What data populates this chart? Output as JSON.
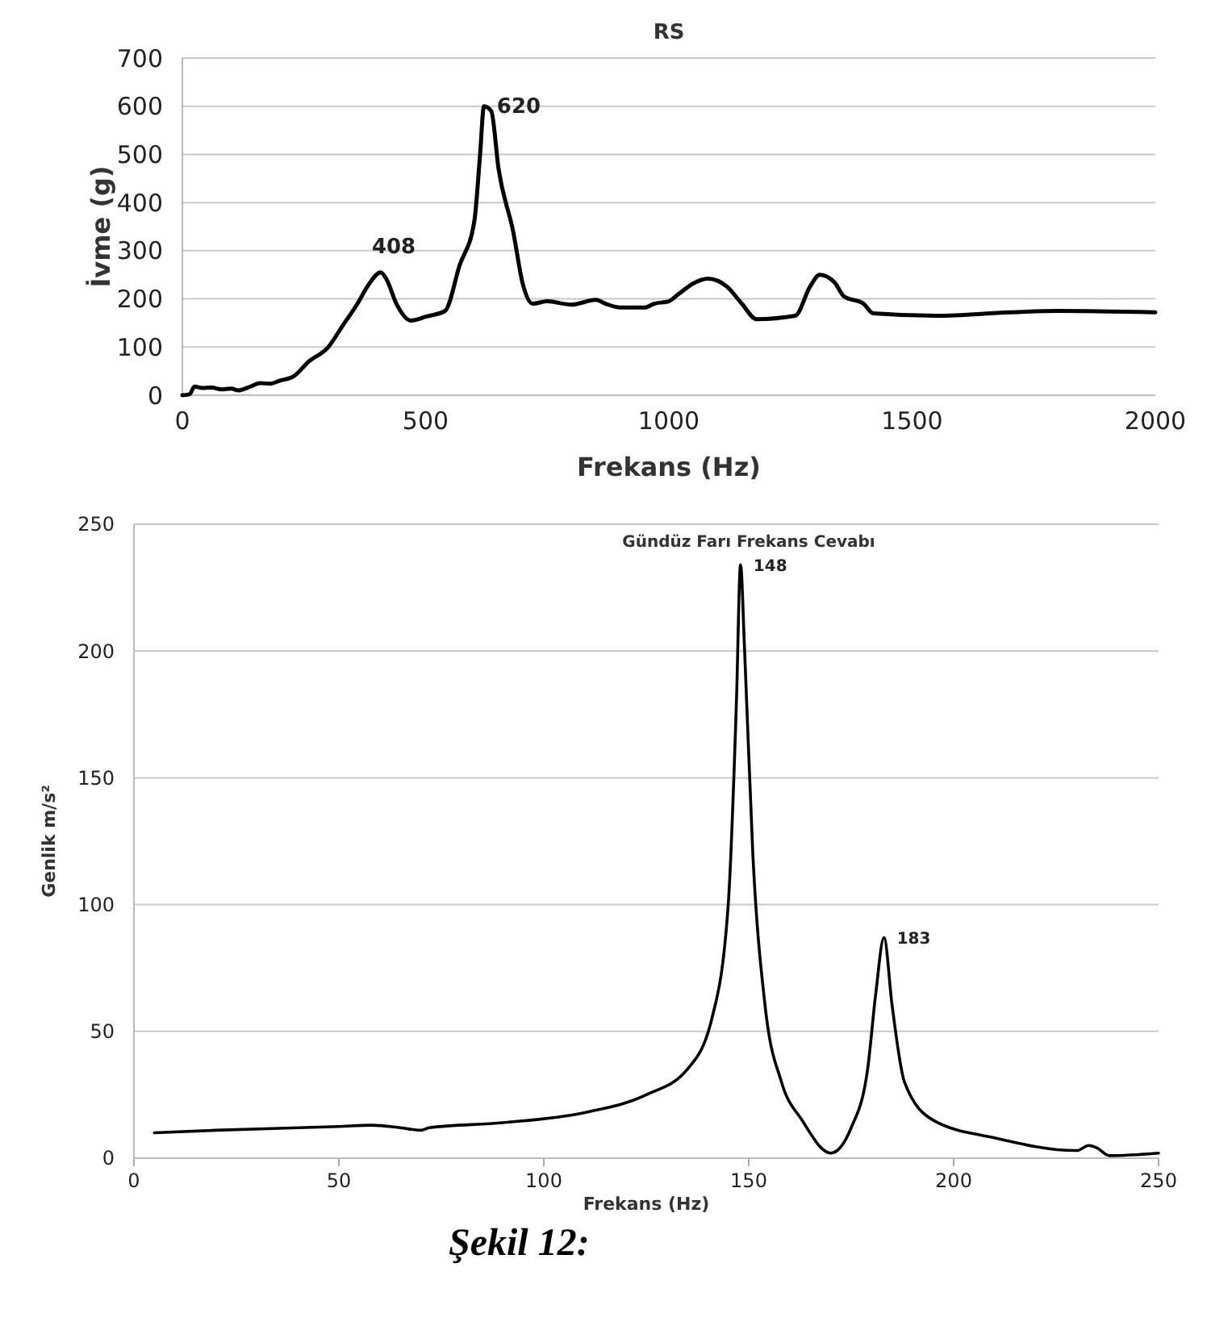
{
  "chart_data": [
    {
      "type": "line",
      "title": "RS",
      "xlabel": "Frekans (Hz)",
      "ylabel": "İvme (g)",
      "xlim": [
        0,
        2000
      ],
      "xticks": [
        0,
        500,
        1000,
        1500,
        2000
      ],
      "ylim": [
        0,
        700
      ],
      "yticks": [
        0,
        100,
        200,
        300,
        400,
        500,
        600,
        700
      ],
      "grid": "y",
      "annotations": [
        {
          "text": "408",
          "x": 408,
          "y": 255
        },
        {
          "text": "620",
          "x": 620,
          "y": 600
        }
      ],
      "series": [
        {
          "color": "#000000",
          "x": [
            0,
            15,
            25,
            40,
            60,
            80,
            100,
            115,
            140,
            160,
            180,
            200,
            230,
            260,
            300,
            330,
            360,
            380,
            408,
            420,
            440,
            470,
            500,
            540,
            570,
            600,
            612,
            620,
            635,
            650,
            680,
            700,
            720,
            750,
            800,
            850,
            870,
            900,
            950,
            970,
            1000,
            1020,
            1050,
            1080,
            1120,
            1150,
            1180,
            1260,
            1290,
            1310,
            1340,
            1360,
            1400,
            1420,
            1550,
            1700,
            1800,
            2000
          ],
          "values": [
            0,
            2,
            18,
            15,
            16,
            12,
            14,
            10,
            18,
            25,
            24,
            30,
            40,
            70,
            100,
            145,
            190,
            225,
            255,
            240,
            190,
            155,
            163,
            175,
            270,
            360,
            500,
            600,
            590,
            470,
            340,
            230,
            190,
            195,
            188,
            198,
            190,
            182,
            182,
            190,
            195,
            210,
            232,
            242,
            225,
            190,
            158,
            165,
            225,
            250,
            235,
            205,
            190,
            170,
            165,
            172,
            175,
            172
          ]
        }
      ]
    },
    {
      "type": "line",
      "title": "Gündüz Farı Frekans Cevabı",
      "xlabel": "Frekans (Hz)",
      "ylabel": "Genlik m/s²",
      "xlim": [
        0,
        250
      ],
      "xticks": [
        0,
        50,
        100,
        150,
        200,
        250
      ],
      "ylim": [
        0,
        250
      ],
      "yticks": [
        0,
        50,
        100,
        150,
        200,
        250
      ],
      "grid": "y",
      "annotations": [
        {
          "text": "148",
          "x": 148,
          "y": 234
        },
        {
          "text": "183",
          "x": 183,
          "y": 87
        },
        "Şekil 12:"
      ],
      "series": [
        {
          "color": "#000000",
          "x": [
            5,
            20,
            50,
            58,
            65,
            70,
            72,
            90,
            110,
            125,
            135,
            141,
            145,
            147,
            148,
            149,
            151,
            154,
            158,
            163,
            170,
            175,
            179,
            181,
            183,
            185,
            188,
            195,
            210,
            230,
            233,
            235,
            238,
            250
          ],
          "values": [
            10,
            11,
            12.5,
            13,
            12,
            11,
            12,
            14,
            18,
            25,
            35,
            55,
            100,
            180,
            234,
            200,
            120,
            60,
            30,
            15,
            2,
            12,
            35,
            65,
            87,
            60,
            30,
            15,
            8,
            3,
            5,
            4,
            1,
            2
          ]
        }
      ]
    }
  ]
}
